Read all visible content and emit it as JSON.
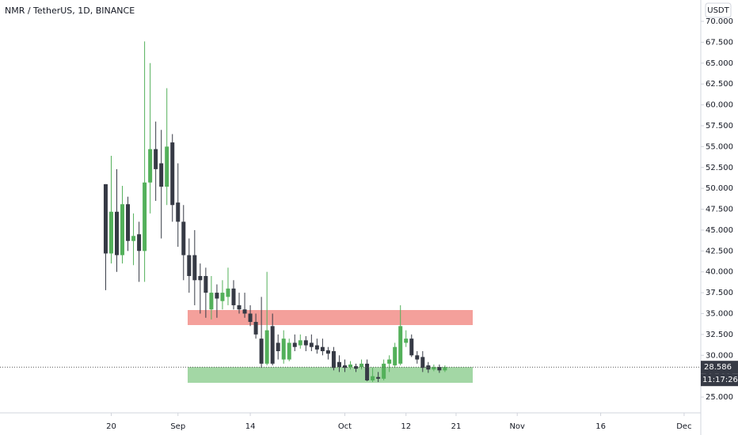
{
  "chart_data": {
    "type": "candlestick",
    "title": "NMR / TetherUS, 1D, BINANCE",
    "currency": "USDT",
    "last_price": 28.586,
    "countdown": "11:17:26",
    "up_color": "#53b05a",
    "down_color": "#363a45",
    "x": [
      "Aug 19",
      "Aug 20",
      "Aug 21",
      "Aug 22",
      "Aug 23",
      "Aug 24",
      "Aug 25",
      "Aug 26",
      "Aug 27",
      "Aug 28",
      "Aug 29",
      "Aug 30",
      "Aug 31",
      "Sep 1",
      "Sep 2",
      "Sep 3",
      "Sep 4",
      "Sep 5",
      "Sep 6",
      "Sep 7",
      "Sep 8",
      "Sep 9",
      "Sep 10",
      "Sep 11",
      "Sep 12",
      "Sep 13",
      "Sep 14",
      "Sep 15",
      "Sep 16",
      "Sep 17",
      "Sep 18",
      "Sep 19",
      "Sep 20",
      "Sep 21",
      "Sep 22",
      "Sep 23",
      "Sep 24",
      "Sep 25",
      "Sep 26",
      "Sep 27",
      "Sep 28",
      "Sep 29",
      "Sep 30",
      "Oct 1",
      "Oct 2",
      "Oct 3",
      "Oct 4",
      "Oct 5",
      "Oct 6",
      "Oct 7",
      "Oct 8",
      "Oct 9",
      "Oct 10",
      "Oct 11",
      "Oct 12",
      "Oct 13",
      "Oct 14",
      "Oct 15",
      "Oct 16",
      "Oct 17",
      "Oct 18",
      "Oct 19"
    ],
    "open": [
      50.5,
      42.2,
      47.2,
      42,
      48.1,
      43.7,
      44.5,
      42.5,
      50.7,
      54.7,
      53,
      50.2,
      55.5,
      48.3,
      46,
      42,
      42,
      39.5,
      39.5,
      35.5,
      37.5,
      36.5,
      37,
      38,
      36,
      35.5,
      35,
      34,
      32,
      29,
      33.5,
      31.5,
      29.5,
      29.5,
      31.5,
      31.2,
      31.8,
      31.5,
      31.2,
      31,
      30.6,
      30.5,
      29.2,
      28.8,
      28.6,
      28.7,
      28.6,
      29,
      27,
      27.4,
      27.2,
      29,
      28.8,
      29,
      31.5,
      32,
      30,
      29.8,
      28.8,
      28.3,
      28.6,
      28.2
    ],
    "high": [
      50.5,
      53.9,
      52.3,
      50.3,
      49,
      47,
      46,
      67.6,
      65,
      58,
      57,
      62,
      56.5,
      53,
      48,
      44,
      45,
      41,
      40.5,
      39.5,
      38.5,
      39,
      40.5,
      39,
      37.5,
      37.5,
      36,
      35,
      37,
      40,
      35,
      32.5,
      33,
      32,
      32.5,
      32.5,
      32.3,
      32.5,
      32,
      32,
      31,
      31,
      30,
      29.5,
      29.3,
      29,
      29.5,
      29.5,
      28.5,
      28,
      29.5,
      30,
      31.5,
      36,
      33,
      32.5,
      30.5,
      30.5,
      29.2,
      28.9,
      28.9,
      28.8
    ],
    "low": [
      37.8,
      41,
      40,
      41,
      42.5,
      40.8,
      38.8,
      38.8,
      47,
      48.5,
      44,
      48,
      46,
      43,
      39,
      37.5,
      36,
      35,
      34.5,
      34.3,
      34.5,
      35.5,
      36,
      35.5,
      35,
      34.5,
      33.5,
      32,
      28.5,
      28.8,
      28.8,
      29.5,
      29,
      29.3,
      30.5,
      30.8,
      30.5,
      30.5,
      30.2,
      30,
      29.5,
      28.2,
      28,
      28,
      28.3,
      28,
      28.3,
      26.9,
      26.8,
      26.8,
      27,
      28,
      28.5,
      28.8,
      31,
      29.8,
      29,
      28,
      27.9,
      28.1,
      27.9,
      28
    ],
    "close": [
      42.2,
      47.2,
      42,
      48.1,
      43.7,
      44.3,
      42.5,
      50.7,
      54.7,
      52.3,
      50.2,
      55,
      48,
      46,
      42,
      39.5,
      39,
      39,
      37.5,
      37.5,
      36.8,
      37.5,
      38,
      36,
      35.5,
      35,
      34,
      32.5,
      29,
      33,
      29,
      30.5,
      32,
      31.5,
      31,
      31.8,
      31.2,
      31,
      30.7,
      30.5,
      30.2,
      28.5,
      28.6,
      28.5,
      28.9,
      28.4,
      29,
      27,
      27.5,
      27.2,
      29,
      29.5,
      31,
      33.5,
      32,
      30,
      29.5,
      28.5,
      28.3,
      28.6,
      28.2,
      28.586
    ],
    "xlim": [
      "Jul 31",
      "Dec 4"
    ],
    "xticks": [
      {
        "value": "Aug 20",
        "label": "20"
      },
      {
        "value": "Sep 1",
        "label": "Sep"
      },
      {
        "value": "Sep 14",
        "label": "14"
      },
      {
        "value": "Oct 1",
        "label": "Oct"
      },
      {
        "value": "Oct 12",
        "label": "12"
      },
      {
        "value": "Oct 21",
        "label": "21"
      },
      {
        "value": "Nov 1",
        "label": "Nov"
      },
      {
        "value": "Nov 16",
        "label": "16"
      },
      {
        "value": "Dec 1",
        "label": "Dec"
      }
    ],
    "ylim": [
      23.11,
      72.56
    ],
    "yticks": [
      {
        "value": 25,
        "label": "25.000"
      },
      {
        "value": 27.5,
        "label": "27.500"
      },
      {
        "value": 30,
        "label": "30.000"
      },
      {
        "value": 32.5,
        "label": "32.500"
      },
      {
        "value": 35,
        "label": "35.000"
      },
      {
        "value": 37.5,
        "label": "37.500"
      },
      {
        "value": 40,
        "label": "40.000"
      },
      {
        "value": 42.5,
        "label": "42.500"
      },
      {
        "value": 45,
        "label": "45.000"
      },
      {
        "value": 47.5,
        "label": "47.500"
      },
      {
        "value": 50,
        "label": "50.000"
      },
      {
        "value": 52.5,
        "label": "52.500"
      },
      {
        "value": 55,
        "label": "55.000"
      },
      {
        "value": 57.5,
        "label": "57.500"
      },
      {
        "value": 60,
        "label": "60.000"
      },
      {
        "value": 62.5,
        "label": "62.500"
      },
      {
        "value": 65,
        "label": "65.000"
      },
      {
        "value": 67.5,
        "label": "67.500"
      },
      {
        "value": 70,
        "label": "70.000"
      }
    ]
  }
}
